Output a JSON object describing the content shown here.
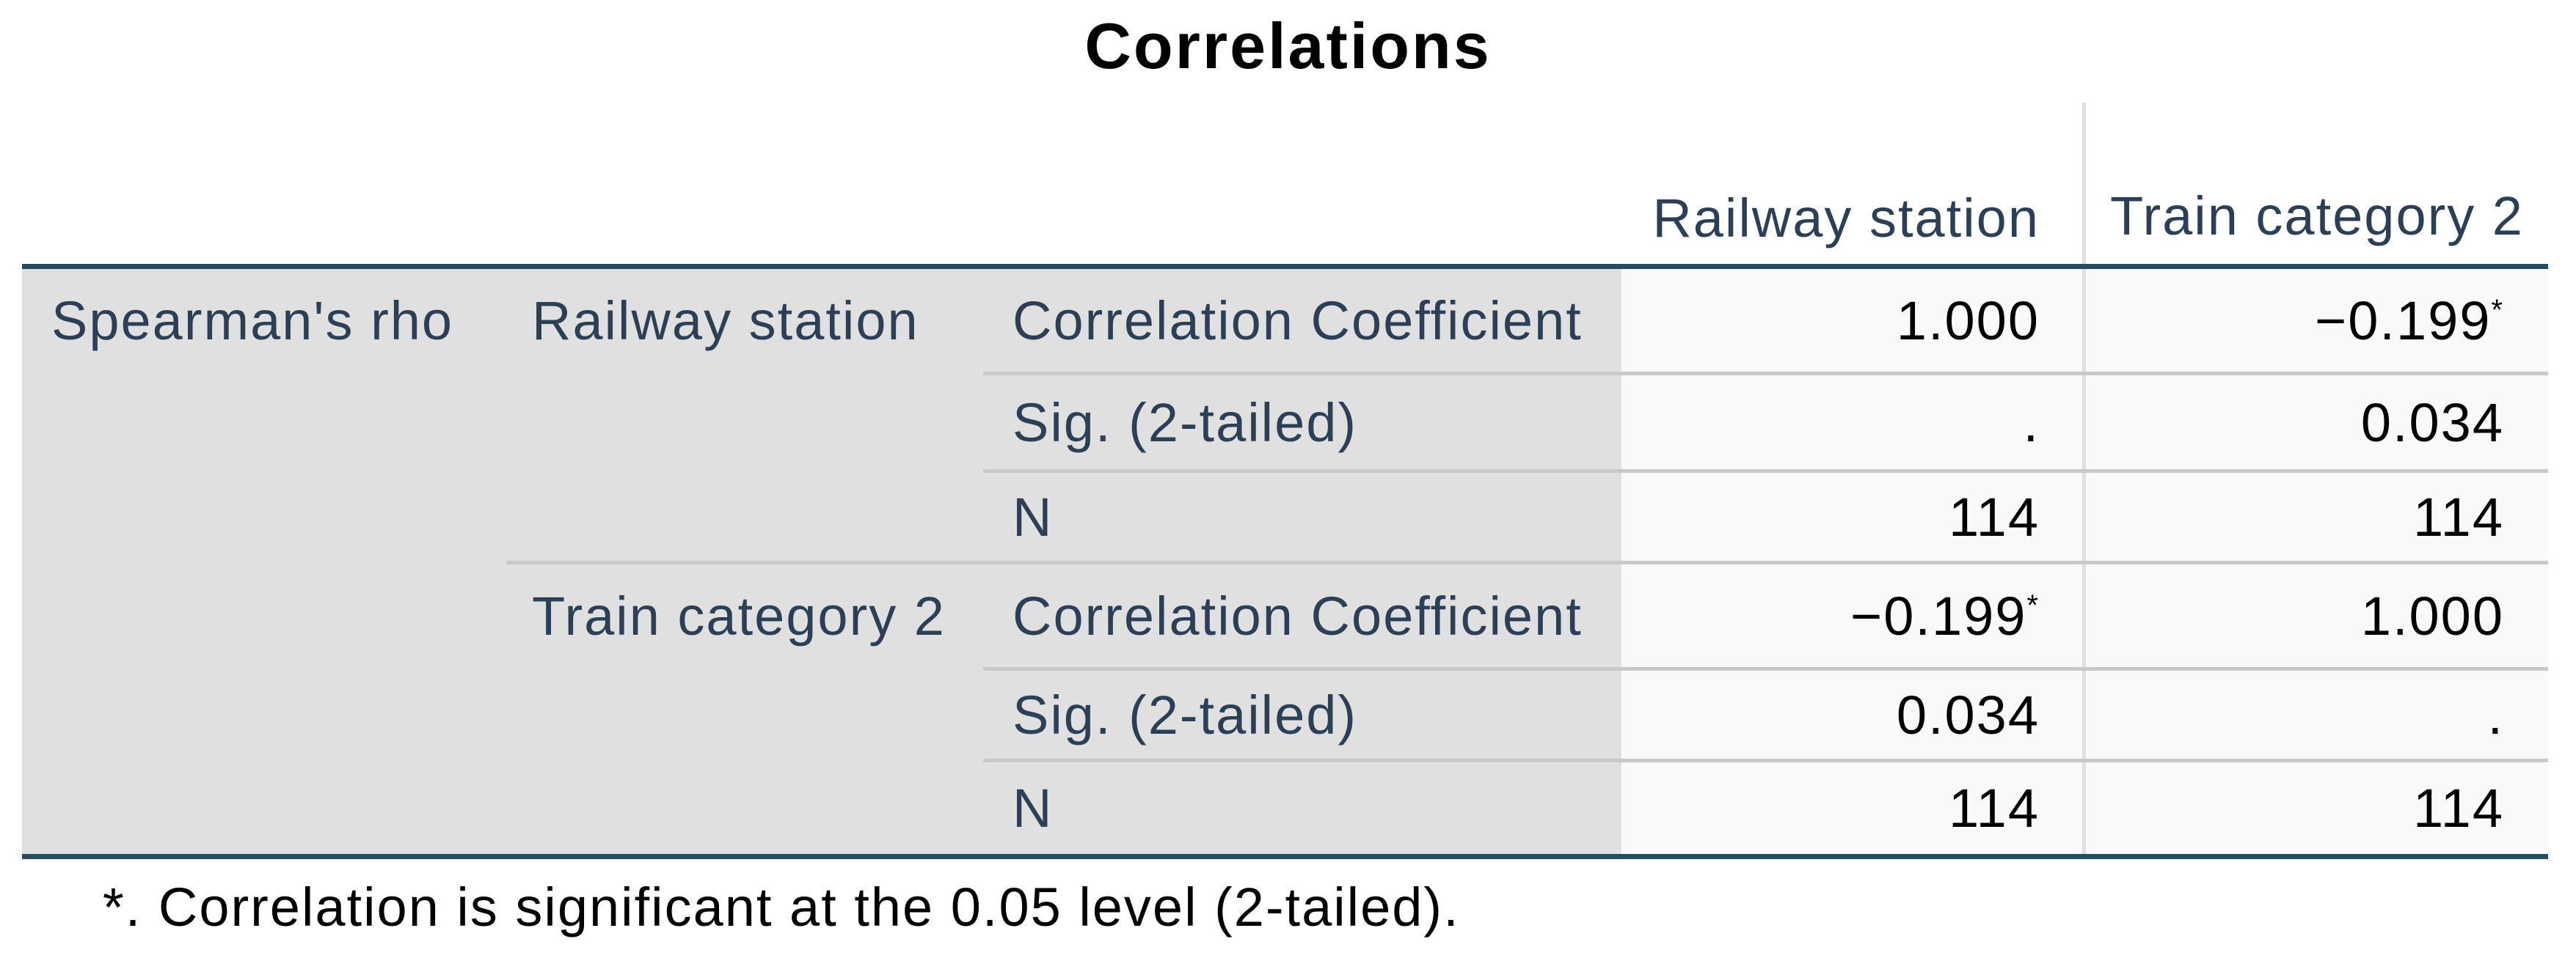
{
  "title": "Correlations",
  "columns": {
    "col1": "Railway station",
    "col2": "Train category 2"
  },
  "group_label": "Spearman's rho",
  "rows": [
    {
      "variable": "Railway station",
      "stats": [
        {
          "label": "Correlation Coefficient",
          "v1": "1.000",
          "v2": "−0.199",
          "v2_sup": "*"
        },
        {
          "label": "Sig. (2-tailed)",
          "v1": ".",
          "v2": "0.034"
        },
        {
          "label": "N",
          "v1": "114",
          "v2": "114"
        }
      ]
    },
    {
      "variable": "Train category 2",
      "stats": [
        {
          "label": "Correlation Coefficient",
          "v1": "−0.199",
          "v1_sup": "*",
          "v2": "1.000"
        },
        {
          "label": "Sig. (2-tailed)",
          "v1": "0.034",
          "v2": "."
        },
        {
          "label": "N",
          "v1": "114",
          "v2": "114"
        }
      ]
    }
  ],
  "footnote": "*. Correlation is significant at the 0.05 level (2-tailed).",
  "colors": {
    "label_text": "#2b3f57",
    "row_header_bg": "#e0e0e0",
    "data_bg": "#f9f9fb",
    "border_dark": "#264a60"
  }
}
